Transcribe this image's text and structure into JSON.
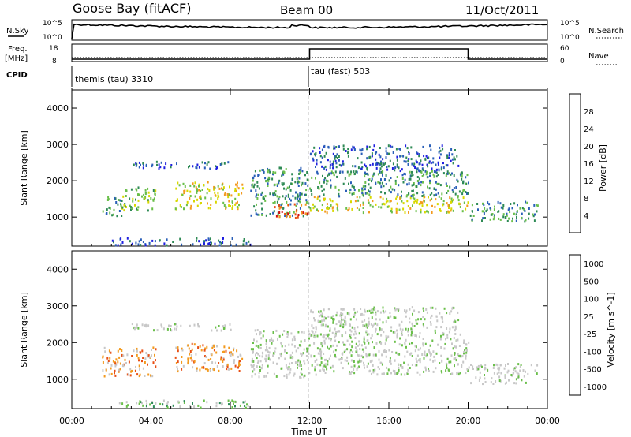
{
  "header": {
    "station": "Goose Bay (fitACF)",
    "beam": "Beam 00",
    "date": "11/Oct/2011"
  },
  "top_panels": {
    "nsky_label": "N.Sky",
    "nsky_ticks": [
      "10^5",
      "10^0"
    ],
    "nsearch_label": "N.Search",
    "nsearch_ticks": [
      "10^5",
      "10^0"
    ],
    "freq_label_1": "Freq.",
    "freq_label_2": "[MHz]",
    "freq_ticks": [
      "18",
      "8"
    ],
    "nave_label": "Nave",
    "nave_ticks": [
      "60",
      "0"
    ],
    "cpid_label": "CPID",
    "cpid_programs": [
      {
        "name": "themis (tau) 3310",
        "start_hour": 0
      },
      {
        "name": "tau (fast) 503",
        "start_hour": 12
      }
    ],
    "freq_series": [
      {
        "start_hour": 0,
        "end_hour": 12,
        "level": "low"
      },
      {
        "start_hour": 12,
        "end_hour": 20,
        "level": "high"
      },
      {
        "start_hour": 20,
        "end_hour": 24,
        "level": "low"
      }
    ]
  },
  "x_axis": {
    "label": "Time UT",
    "ticks": [
      "00:00",
      "04:00",
      "08:00",
      "12:00",
      "16:00",
      "20:00",
      "00:00"
    ],
    "range_hours": [
      0,
      24
    ]
  },
  "chart_data": [
    {
      "type": "heatmap",
      "name": "power",
      "ylabel": "Slant Range [km]",
      "y_ticks": [
        "1000",
        "2000",
        "3000",
        "4000"
      ],
      "ylim": [
        200,
        4500
      ],
      "xlim": [
        0,
        24
      ],
      "colorbar_label": "Power [dB]",
      "colorbar_ticks": [
        "4",
        "8",
        "12",
        "16",
        "20",
        "24",
        "28"
      ],
      "colorbar_colors": [
        "#1f1fe0",
        "#2a5fb8",
        "#2e8a55",
        "#6abf4a",
        "#d8d800",
        "#f39a1e",
        "#e84f14",
        "#d40f0f"
      ],
      "regions": [
        {
          "t0": 1.5,
          "t1": 2.5,
          "r0": 1050,
          "r1": 1600,
          "level": 2
        },
        {
          "t0": 2.5,
          "t1": 4.2,
          "r0": 1200,
          "r1": 1900,
          "level": 3
        },
        {
          "t0": 5.2,
          "t1": 8.6,
          "r0": 1250,
          "r1": 2000,
          "level": 4
        },
        {
          "t0": 3.0,
          "t1": 8.0,
          "r0": 2350,
          "r1": 2550,
          "level": 1
        },
        {
          "t0": 9.0,
          "t1": 12.0,
          "r0": 1050,
          "r1": 2400,
          "level": 2
        },
        {
          "t0": 10.2,
          "t1": 12.0,
          "r0": 1000,
          "r1": 1400,
          "level": 6
        },
        {
          "t0": 12.0,
          "t1": 20.0,
          "r0": 1150,
          "r1": 1600,
          "level": 4
        },
        {
          "t0": 12.0,
          "t1": 20.0,
          "r0": 1600,
          "r1": 2300,
          "level": 2
        },
        {
          "t0": 12.0,
          "t1": 19.5,
          "r0": 2300,
          "r1": 3000,
          "level": 1
        },
        {
          "t0": 20.0,
          "t1": 23.5,
          "r0": 900,
          "r1": 1450,
          "level": 2
        },
        {
          "t0": 2.0,
          "t1": 9.0,
          "r0": 250,
          "r1": 450,
          "level": 1
        }
      ]
    },
    {
      "type": "heatmap",
      "name": "velocity",
      "ylabel": "Slant Range [km]",
      "y_ticks": [
        "1000",
        "2000",
        "3000",
        "4000"
      ],
      "ylim": [
        200,
        4500
      ],
      "xlim": [
        0,
        24
      ],
      "colorbar_label": "Velocity [m s^-1]",
      "colorbar_ticks": [
        "1000",
        "500",
        "100",
        "25",
        "-25",
        "-100",
        "-500",
        "-1000"
      ],
      "colorbar_colors": [
        "#1f3fb8",
        "#2a8a55",
        "#6abf4a",
        "#c8c8c8",
        "#c8c8c8",
        "#f39a1e",
        "#e84f14",
        "#d40f0f"
      ],
      "regions": [
        {
          "t0": 1.5,
          "t1": 4.2,
          "r0": 1100,
          "r1": 1900,
          "level": 5
        },
        {
          "t0": 5.2,
          "t1": 8.6,
          "r0": 1250,
          "r1": 2000,
          "level": 5
        },
        {
          "t0": 3.0,
          "t1": 8.0,
          "r0": 2350,
          "r1": 2550,
          "level": 3
        },
        {
          "t0": 9.0,
          "t1": 12.0,
          "r0": 1050,
          "r1": 2400,
          "level": 3
        },
        {
          "t0": 12.0,
          "t1": 20.0,
          "r0": 1150,
          "r1": 2300,
          "level": 3
        },
        {
          "t0": 12.0,
          "t1": 19.5,
          "r0": 2300,
          "r1": 3000,
          "level": 3
        },
        {
          "t0": 20.0,
          "t1": 23.5,
          "r0": 900,
          "r1": 1450,
          "level": 3
        },
        {
          "t0": 2.0,
          "t1": 9.0,
          "r0": 250,
          "r1": 450,
          "level": 2
        }
      ]
    }
  ]
}
